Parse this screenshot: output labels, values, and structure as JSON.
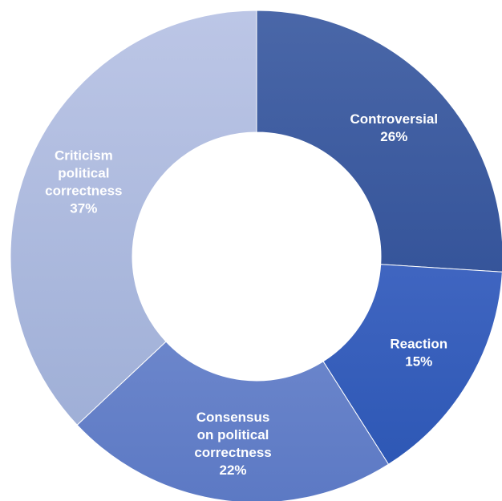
{
  "chart_data": {
    "type": "pie",
    "variant": "donut",
    "slices": [
      {
        "label_lines": [
          "Controversial"
        ],
        "value": 26,
        "value_label": "26%",
        "color_start": "#4a67a8",
        "color_end": "#23448e"
      },
      {
        "label_lines": [
          "Reaction"
        ],
        "value": 15,
        "value_label": "15%",
        "color_start": "#5777cf",
        "color_end": "#2a55b3"
      },
      {
        "label_lines": [
          "Consensus",
          "on political",
          "correctness"
        ],
        "value": 22,
        "value_label": "22%",
        "color_start": "#8ba0da",
        "color_end": "#5c79c4"
      },
      {
        "label_lines": [
          "Criticism",
          "political",
          "correctness"
        ],
        "value": 37,
        "value_label": "37%",
        "color_start": "#bcc6e6",
        "color_end": "#9aabd4"
      }
    ],
    "legend": "none"
  }
}
